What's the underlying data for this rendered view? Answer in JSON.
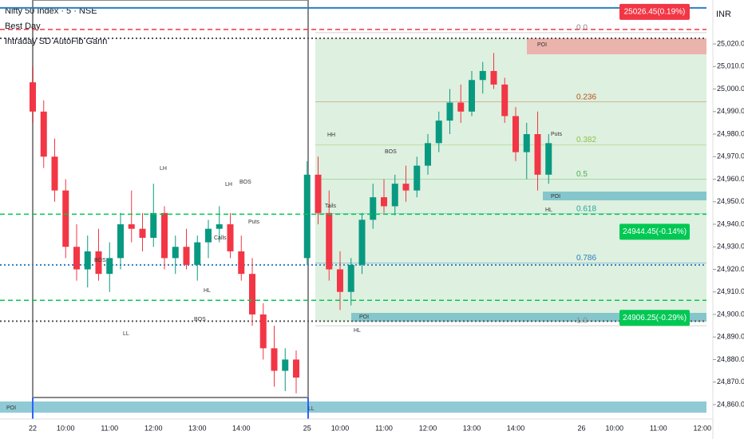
{
  "header": {
    "symbol": "Nifty 50 Index · 5 · NSE",
    "indicator1": "Best Day",
    "indicator2": "Intraday SD AutoFib Gann",
    "currency": "INR"
  },
  "chart_data": {
    "type": "candlestick",
    "categories": [
      "22",
      null,
      null,
      "10:00",
      null,
      null,
      null,
      "11:00",
      null,
      null,
      null,
      "12:00",
      null,
      null,
      null,
      "13:00",
      null,
      null,
      null,
      "14:00",
      null,
      null,
      null,
      null,
      null,
      "25",
      null,
      null,
      "10:00",
      null,
      null,
      null,
      "11:00",
      null,
      null,
      null,
      "12:00",
      null,
      null,
      null,
      "13:00",
      null,
      null,
      null,
      "14:00",
      null,
      null,
      null,
      null,
      null,
      "26",
      null,
      null,
      "10:00",
      null,
      null,
      null,
      "11:00",
      null,
      null,
      null,
      "12:00"
    ],
    "open": [
      25003,
      24990,
      24970,
      24955,
      24930,
      24920,
      24928,
      24918,
      24925,
      24940,
      24938,
      24934,
      24945,
      24925,
      24930,
      24922,
      24932,
      24938,
      24940,
      24928,
      24918,
      24900,
      24885,
      24875,
      24880,
      24925,
      24962,
      24945,
      24920,
      24910,
      24922,
      24942,
      24952,
      24948,
      24958,
      24955,
      24966,
      24976,
      24986,
      24994,
      24990,
      25004,
      25008,
      25002,
      24988,
      24972,
      24980,
      24962,
      null,
      null,
      null,
      null,
      null,
      null,
      null,
      null,
      null,
      null,
      null,
      null,
      null,
      null
    ],
    "high": [
      25010,
      24995,
      24978,
      24960,
      24940,
      24935,
      24938,
      24932,
      24945,
      24955,
      24945,
      24958,
      24948,
      24935,
      24938,
      24935,
      24942,
      24948,
      24945,
      24935,
      24925,
      24905,
      24895,
      24885,
      24884,
      24968,
      24970,
      24955,
      24928,
      24925,
      24945,
      24958,
      24960,
      24962,
      24966,
      24970,
      24980,
      24990,
      25000,
      25002,
      25008,
      25012,
      25016,
      25005,
      24992,
      24985,
      24990,
      24980,
      null,
      null,
      null,
      null,
      null,
      null,
      null,
      null,
      null,
      null,
      null,
      null,
      null,
      null
    ],
    "low": [
      24985,
      24965,
      24950,
      24925,
      24915,
      24912,
      24915,
      24910,
      24920,
      24932,
      24928,
      24930,
      24920,
      24918,
      24920,
      24915,
      24925,
      24932,
      24925,
      24915,
      24895,
      24880,
      24868,
      24866,
      24865,
      24922,
      24940,
      24915,
      24902,
      24904,
      24918,
      24938,
      24945,
      24944,
      24950,
      24952,
      24962,
      24972,
      24980,
      24985,
      24988,
      24998,
      25000,
      24985,
      24968,
      24960,
      24955,
      24958,
      null,
      null,
      null,
      null,
      null,
      null,
      null,
      null,
      null,
      null,
      null,
      null,
      null,
      null
    ],
    "close": [
      24990,
      24970,
      24955,
      24930,
      24920,
      24928,
      24918,
      24925,
      24940,
      24938,
      24934,
      24945,
      24925,
      24930,
      24922,
      24932,
      24938,
      24940,
      24928,
      24918,
      24900,
      24885,
      24875,
      24880,
      24872,
      24962,
      24945,
      24920,
      24910,
      24922,
      24942,
      24952,
      24948,
      24958,
      24955,
      24966,
      24976,
      24986,
      24994,
      24990,
      25004,
      25008,
      25002,
      24988,
      24972,
      24980,
      24962,
      24976,
      null,
      null,
      null,
      null,
      null,
      null,
      null,
      null,
      null,
      null,
      null,
      null,
      null,
      null
    ],
    "up_color": "#089981",
    "down_color": "#f23645",
    "ylim": [
      24853.6,
      25039.5
    ],
    "yticks": [
      {
        "value": 24860,
        "label": "24,860.00"
      },
      {
        "value": 24870,
        "label": "24,870.00"
      },
      {
        "value": 24880,
        "label": "24,880.00"
      },
      {
        "value": 24890,
        "label": "24,890.00"
      },
      {
        "value": 24900,
        "label": "24,900.00"
      },
      {
        "value": 24910,
        "label": "24,910.00"
      },
      {
        "value": 24920,
        "label": "24,920.00"
      },
      {
        "value": 24930,
        "label": "24,930.00"
      },
      {
        "value": 24940,
        "label": "24,940.00"
      },
      {
        "value": 24950,
        "label": "24,950.00"
      },
      {
        "value": 24960,
        "label": "24,960.00"
      },
      {
        "value": 24970,
        "label": "24,970.00"
      },
      {
        "value": 24980,
        "label": "24,980.00"
      },
      {
        "value": 24990,
        "label": "24,990.00"
      },
      {
        "value": 25000,
        "label": "25,000.00"
      },
      {
        "value": 25010,
        "label": "25,010.00"
      },
      {
        "value": 25020,
        "label": "25,020.00"
      }
    ],
    "price_labels": [
      {
        "value": 25026.45,
        "label": "25026.45(0.19%)",
        "color": "#f23645"
      },
      {
        "value": 24944.45,
        "label": "24944.45(-0.14%)",
        "color": "#00c853"
      },
      {
        "value": 24906.25,
        "label": "24906.25(-0.29%)",
        "color": "#00c853"
      }
    ],
    "levels": [
      {
        "value": 25036,
        "color": "#2a7fc1",
        "style": "solid"
      },
      {
        "value": 24922,
        "color": "#2a7fc1",
        "style": "dotted"
      },
      {
        "value": 25022.5,
        "color": "#555555",
        "style": "dotted"
      },
      {
        "value": 24897,
        "color": "#555555",
        "style": "dotted"
      }
    ],
    "fib_levels": [
      {
        "label": "0.0",
        "value": 25025,
        "color": "#888888"
      },
      {
        "label": "0.236",
        "value": 24994.3,
        "color": "#b5541e"
      },
      {
        "label": "0.382",
        "value": 24975.3,
        "color": "#8bc34a"
      },
      {
        "label": "0.5",
        "value": 24960,
        "color": "#4caf50"
      },
      {
        "label": "0.618",
        "value": 24944.7,
        "color": "#26a69a"
      },
      {
        "label": "0.786",
        "value": 24922.8,
        "color": "#2a7fc1"
      },
      {
        "label": "1.0",
        "value": 24895,
        "color": "#888888"
      }
    ],
    "annotations": [
      "BOS",
      "BOS",
      "BOS",
      "BOS",
      "LH",
      "LH",
      "HH",
      "LL",
      "LL",
      "HL",
      "HL",
      "HL",
      "POI",
      "POI",
      "POI",
      "POI",
      "Puts",
      "Puts",
      "Calls",
      "Tails"
    ]
  }
}
